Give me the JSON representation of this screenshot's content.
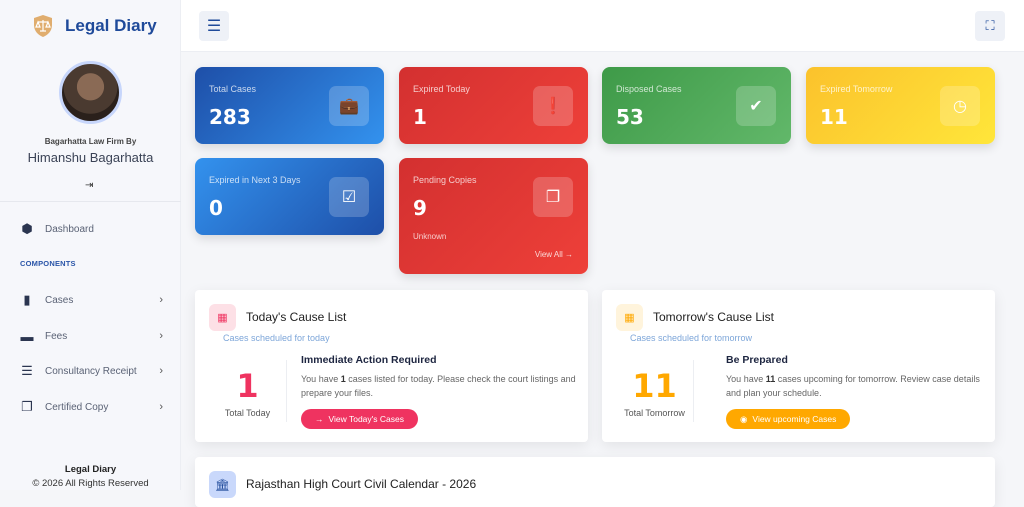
{
  "app": {
    "title": "Legal Diary"
  },
  "profile": {
    "firm": "Bagarhatta Law Firm By",
    "name": "Himanshu Bagarhatta"
  },
  "sidebar": {
    "dashboard": "Dashboard",
    "section": "COMPONENTS",
    "items": [
      {
        "label": "Cases"
      },
      {
        "label": "Fees"
      },
      {
        "label": "Consultancy Receipt"
      },
      {
        "label": "Certified Copy"
      }
    ],
    "footer": {
      "title": "Legal Diary",
      "copyright": "© 2026 All Rights Reserved"
    }
  },
  "stats": [
    {
      "label": "Total Cases",
      "value": "283",
      "icon": "briefcase-icon"
    },
    {
      "label": "Expired Today",
      "value": "1",
      "icon": "exclamation-icon"
    },
    {
      "label": "Disposed Cases",
      "value": "53",
      "icon": "check-circle-icon"
    },
    {
      "label": "Expired Tomorrow",
      "value": "11",
      "icon": "clock-icon"
    },
    {
      "label": "Expired in Next 3 Days",
      "value": "0",
      "icon": "calendar-check-icon"
    },
    {
      "label": "Pending Copies",
      "value": "9",
      "sub": "Unknown",
      "link": "View All",
      "icon": "copy-icon"
    }
  ],
  "today": {
    "title": "Today's Cause List",
    "subtitle": "Cases scheduled for today",
    "count": "1",
    "count_label": "Total Today",
    "heading": "Immediate Action Required",
    "text_pre": "You have ",
    "text_num": "1",
    "text_post": " cases listed for today. Please check the court listings and prepare your files.",
    "button": "View Today's Cases",
    "color": "#ef3360"
  },
  "tomorrow": {
    "title": "Tomorrow's Cause List",
    "subtitle": "Cases scheduled for tomorrow",
    "count": "11",
    "count_label": "Total Tomorrow",
    "heading": "Be Prepared",
    "text_pre": "You have ",
    "text_num": "11",
    "text_post": " cases upcoming for tomorrow. Review case details and plan your schedule.",
    "button": "View upcoming Cases",
    "color": "#ffa800"
  },
  "calendar": {
    "title": "Rajasthan High Court Civil Calendar - 2026"
  }
}
